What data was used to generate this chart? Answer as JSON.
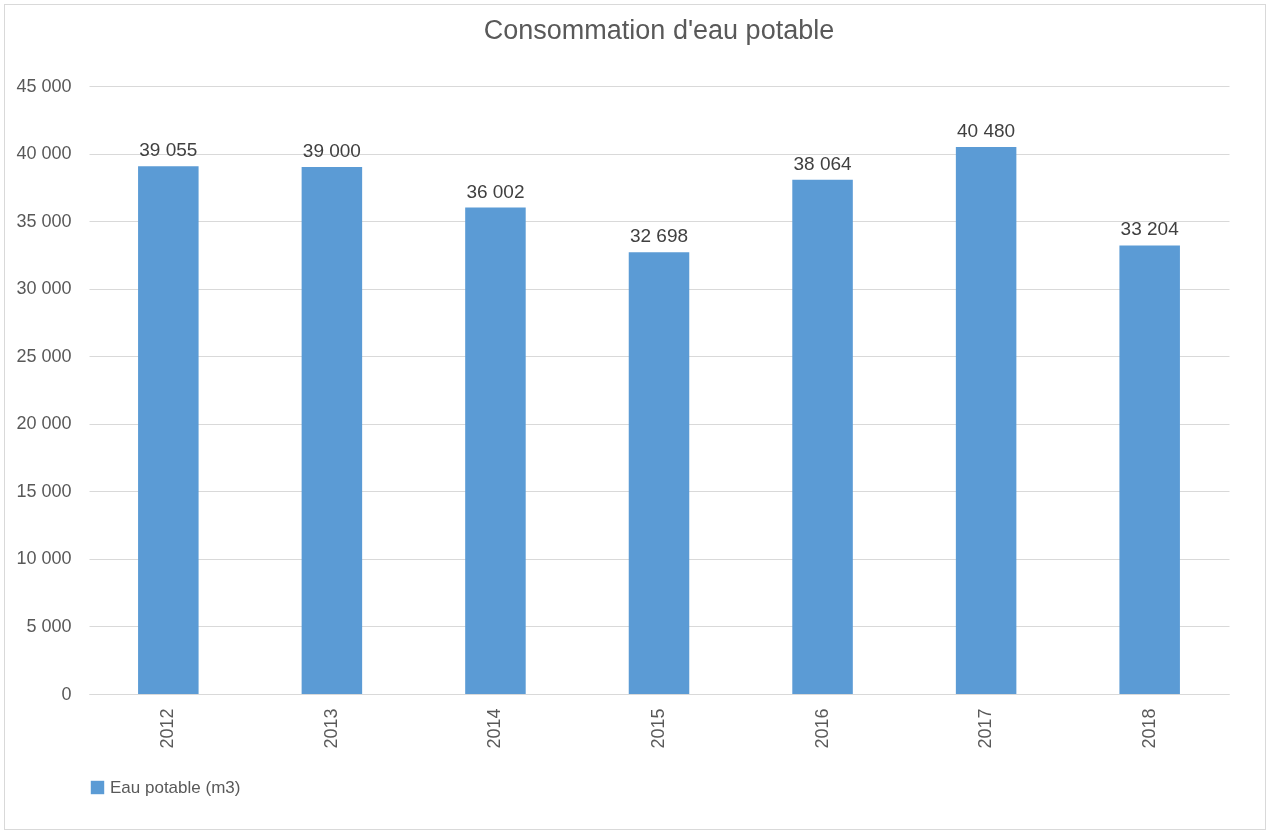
{
  "chart_data": {
    "type": "bar",
    "title": "Consommation d'eau potable",
    "categories": [
      "2012",
      "2013",
      "2014",
      "2015",
      "2016",
      "2017",
      "2018"
    ],
    "series": [
      {
        "name": "Eau potable (m3)",
        "color": "#5b9bd5",
        "values": [
          39055,
          39000,
          36002,
          32698,
          38064,
          40480,
          33204
        ],
        "value_labels": [
          "39 055",
          "39 000",
          "36 002",
          "32 698",
          "38 064",
          "40 480",
          "33 204"
        ]
      }
    ],
    "ylim": [
      0,
      45000
    ],
    "yticks": [
      0,
      {
        "value": 5000,
        "label": "5 000"
      },
      {
        "value": 10000,
        "label": "10 000"
      },
      {
        "value": 15000,
        "label": "15 000"
      },
      {
        "value": 20000,
        "label": "20 000"
      },
      {
        "value": 25000,
        "label": "25 000"
      },
      {
        "value": 30000,
        "label": "30 000"
      },
      {
        "value": 35000,
        "label": "35 000"
      },
      {
        "value": 40000,
        "label": "40 000"
      },
      {
        "value": 45000,
        "label": "45 000"
      }
    ],
    "grid": "y",
    "legend": "bottom"
  }
}
